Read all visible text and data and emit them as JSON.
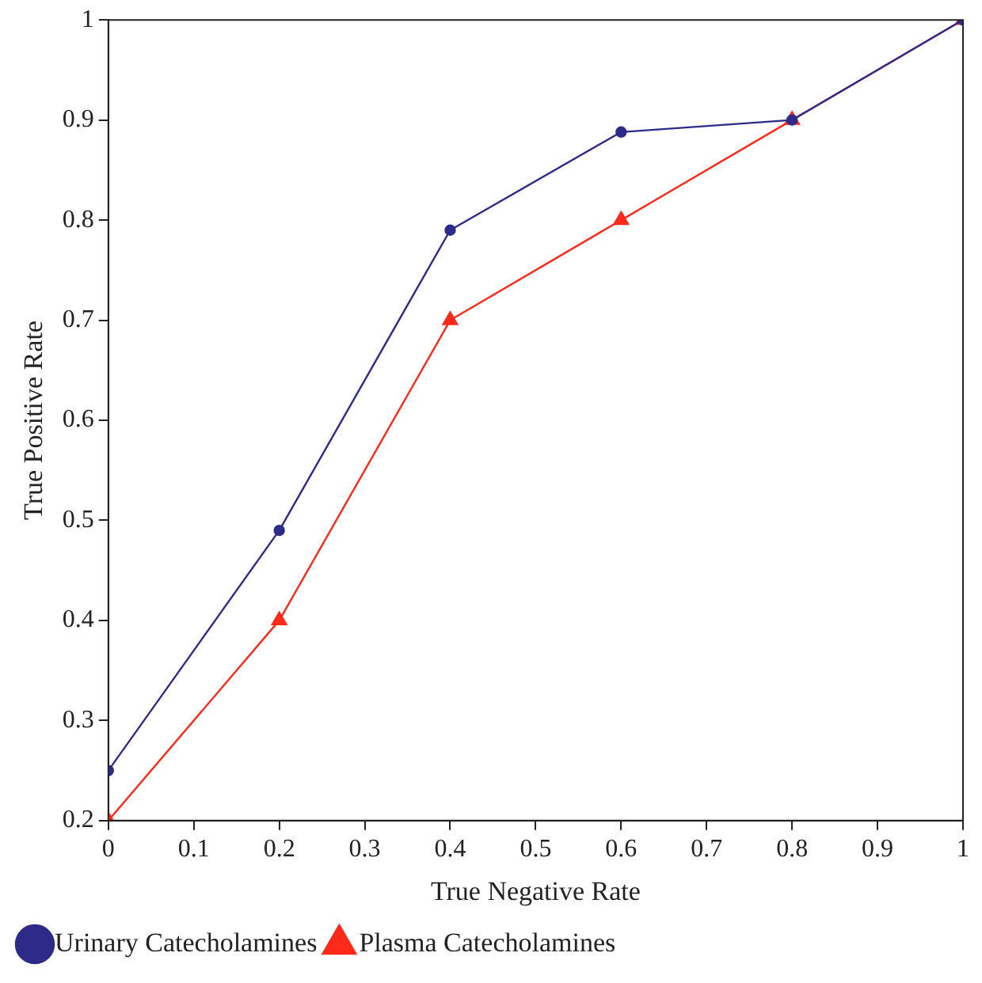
{
  "chart_data": {
    "type": "line",
    "xlabel": "True Negative Rate",
    "ylabel": "True Positive Rate",
    "x": [
      0,
      0.2,
      0.4,
      0.6,
      0.8,
      1
    ],
    "series": [
      {
        "name": "Plasma Catecholamines",
        "color": "#ff2a1a",
        "marker": "triangle",
        "values": [
          0.2,
          0.4,
          0.7,
          0.8,
          0.9,
          1
        ]
      },
      {
        "name": "Urinary Catecholamines",
        "color": "#2e2a8a",
        "marker": "circle",
        "values": [
          0.25,
          0.49,
          0.79,
          0.888,
          0.9,
          1
        ]
      }
    ],
    "xlim": [
      0,
      1
    ],
    "xticks": [
      0,
      0.1,
      0.2,
      0.3,
      0.4,
      0.5,
      0.6,
      0.7,
      0.8,
      0.9,
      1
    ],
    "ylim": [
      0.2,
      1
    ],
    "yticks": [
      0.2,
      0.3,
      0.4,
      0.5,
      0.6,
      0.7,
      0.8,
      0.9,
      1
    ],
    "grid": false,
    "legend": "bottom left",
    "line_style": "solid"
  }
}
